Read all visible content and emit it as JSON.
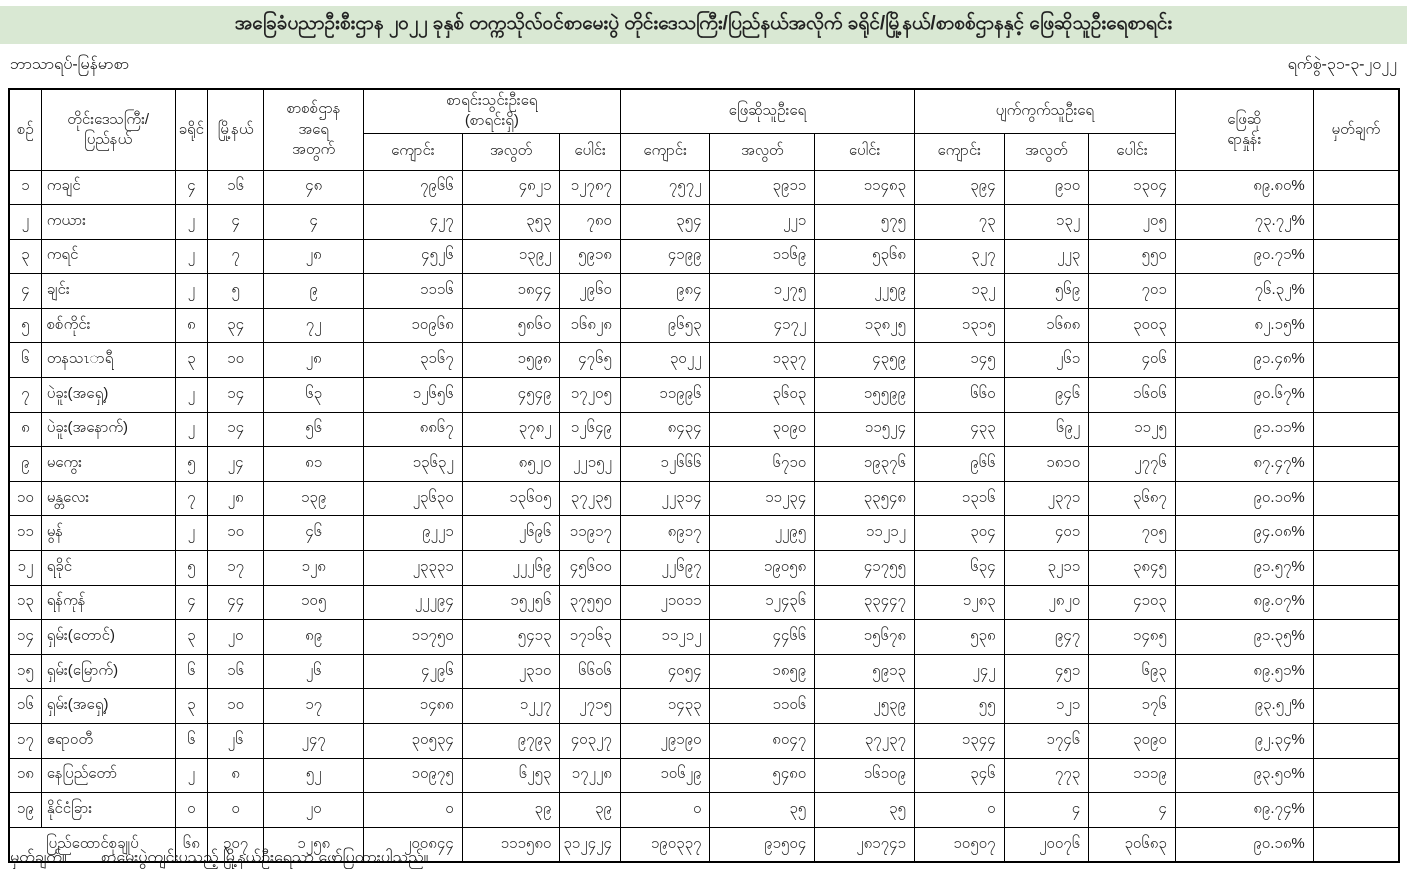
{
  "title": "အခြေခံပညာဦးစီးဌာန ၂၀၂၂ ခုနှစ် တက္ကသိုလ်ဝင်စာမေးပွဲ တိုင်းဒေသကြီး/ပြည်နယ်အလိုက် ခရိုင်/မြို့နယ်/စာစစ်ဌာနနှင့် ဖြေဆိုသူဦးရေစာရင်း",
  "subject_label": "ဘာသာရပ်-မြန်မာစာ",
  "date_label": "ရက်စွဲ-၃၁-၃-၂၀၂၂",
  "header": {
    "seq": "စဉ်",
    "region_line1": "တိုင်းဒေသကြီး/",
    "region_line2": "ပြည်နယ်",
    "district": "ခရိုင်",
    "township": "မြို့နယ်",
    "centers_line1": "စာစစ်ဌာန",
    "centers_line2": "အရေ",
    "centers_line3": "အတွက်",
    "group_registered_line1": "စာရင်းသွင်းဦးရေ",
    "group_registered_line2": "(စာရင်းရှိ)",
    "group_answered": "ဖြေဆိုသူဦးရေ",
    "group_absent": "ပျက်ကွက်သူဦးရေ",
    "sub_school": "ကျောင်း",
    "sub_private": "အလွတ်",
    "sub_total": "ပေါင်း",
    "percent_line1": "ဖြေဆို",
    "percent_line2": "ရာနှုန်း",
    "remark": "မှတ်ချက်"
  },
  "table": {
    "rows": [
      {
        "no": "၁",
        "name": "ကချင်",
        "district": "၄",
        "township": "၁၆",
        "centers": "၄၈",
        "registered": [
          "၇၉၆၆",
          "၄၈၂၁",
          "၁၂၇၈၇"
        ],
        "answered": [
          "၇၅၇၂",
          "၃၉၁၁",
          "၁၁၄၈၃"
        ],
        "absent": [
          "၃၉၄",
          "၉၁၀",
          "၁၃၀၄"
        ],
        "percent": "၈၉.၈၀%",
        "remark": ""
      },
      {
        "no": "၂",
        "name": "ကယား",
        "district": "၂",
        "township": "၄",
        "centers": "၄",
        "registered": [
          "၄၂၇",
          "၃၅၃",
          "၇၈၀"
        ],
        "answered": [
          "၃၅၄",
          "၂၂၁",
          "၅၇၅"
        ],
        "absent": [
          "၇၃",
          "၁၃၂",
          "၂၀၅"
        ],
        "percent": "၇၃.၇၂%",
        "remark": ""
      },
      {
        "no": "၃",
        "name": "ကရင်",
        "district": "၂",
        "township": "၇",
        "centers": "၂၈",
        "registered": [
          "၄၅၂၆",
          "၁၃၉၂",
          "၅၉၁၈"
        ],
        "answered": [
          "၄၁၉၉",
          "၁၁၆၉",
          "၅၃၆၈"
        ],
        "absent": [
          "၃၂၇",
          "၂၂၃",
          "၅၅၀"
        ],
        "percent": "၉၀.၇၁%",
        "remark": ""
      },
      {
        "no": "၄",
        "name": "ချင်း",
        "district": "၂",
        "township": "၅",
        "centers": "၉",
        "registered": [
          "၁၁၁၆",
          "၁၈၄၄",
          "၂၉၆၀"
        ],
        "answered": [
          "၉၈၄",
          "၁၂၇၅",
          "၂၂၅၉"
        ],
        "absent": [
          "၁၃၂",
          "၅၆၉",
          "၇၀၁"
        ],
        "percent": "၇၆.၃၂%",
        "remark": ""
      },
      {
        "no": "၅",
        "name": "စစ်ကိုင်း",
        "district": "၈",
        "township": "၃၄",
        "centers": "၇၂",
        "registered": [
          "၁၀၉၆၈",
          "၅၈၆၀",
          "၁၆၈၂၈"
        ],
        "answered": [
          "၉၆၅၃",
          "၄၁၇၂",
          "၁၃၈၂၅"
        ],
        "absent": [
          "၁၃၁၅",
          "၁၆၈၈",
          "၃၀၀၃"
        ],
        "percent": "၈၂.၁၅%",
        "remark": ""
      },
      {
        "no": "၆",
        "name": "တနသၤာရီ",
        "district": "၃",
        "township": "၁၀",
        "centers": "၂၈",
        "registered": [
          "၃၁၆၇",
          "၁၅၉၈",
          "၄၇၆၅"
        ],
        "answered": [
          "၃၀၂၂",
          "၁၃၃၇",
          "၄၃၅၉"
        ],
        "absent": [
          "၁၄၅",
          "၂၆၁",
          "၄၀၆"
        ],
        "percent": "၉၁.၄၈%",
        "remark": ""
      },
      {
        "no": "၇",
        "name": "ပဲခူး(အရှေ့)",
        "district": "၂",
        "township": "၁၄",
        "centers": "၆၃",
        "registered": [
          "၁၂၆၅၆",
          "၄၅၄၉",
          "၁၇၂၀၅"
        ],
        "answered": [
          "၁၁၉၉၆",
          "၃၆၀၃",
          "၁၅၅၉၉"
        ],
        "absent": [
          "၆၆၀",
          "၉၄၆",
          "၁၆၀၆"
        ],
        "percent": "၉၀.၆၇%",
        "remark": ""
      },
      {
        "no": "၈",
        "name": "ပဲခူး(အနောက်)",
        "district": "၂",
        "township": "၁၄",
        "centers": "၅၆",
        "registered": [
          "၈၈၆၇",
          "၃၇၈၂",
          "၁၂၆၄၉"
        ],
        "answered": [
          "၈၄၃၄",
          "၃၀၉၀",
          "၁၁၅၂၄"
        ],
        "absent": [
          "၄၃၃",
          "၆၉၂",
          "၁၁၂၅"
        ],
        "percent": "၉၁.၁၁%",
        "remark": ""
      },
      {
        "no": "၉",
        "name": "မကွေး",
        "district": "၅",
        "township": "၂၄",
        "centers": "၈၁",
        "registered": [
          "၁၃၆၃၂",
          "၈၅၂၀",
          "၂၂၁၅၂"
        ],
        "answered": [
          "၁၂၆၆၆",
          "၆၇၁၀",
          "၁၉၃၇၆"
        ],
        "absent": [
          "၉၆၆",
          "၁၈၁၀",
          "၂၇၇၆"
        ],
        "percent": "၈၇.၄၇%",
        "remark": ""
      },
      {
        "no": "၁၀",
        "name": "မန္တလေး",
        "district": "၇",
        "township": "၂၈",
        "centers": "၁၃၉",
        "registered": [
          "၂၃၆၃၀",
          "၁၃၆၀၅",
          "၃၇၂၃၅"
        ],
        "answered": [
          "၂၂၃၁၄",
          "၁၁၂၃၄",
          "၃၃၅၄၈"
        ],
        "absent": [
          "၁၃၁၆",
          "၂၃၇၁",
          "၃၆၈၇"
        ],
        "percent": "၉၀.၁၀%",
        "remark": ""
      },
      {
        "no": "၁၁",
        "name": "မွန်",
        "district": "၂",
        "township": "၁၀",
        "centers": "၄၆",
        "registered": [
          "၉၂၂၁",
          "၂၆၉၆",
          "၁၁၉၁၇"
        ],
        "answered": [
          "၈၉၁၇",
          "၂၂၉၅",
          "၁၁၂၁၂"
        ],
        "absent": [
          "၃၀၄",
          "၄၀၁",
          "၇၀၅"
        ],
        "percent": "၉၄.၀၈%",
        "remark": ""
      },
      {
        "no": "၁၂",
        "name": "ရခိုင်",
        "district": "၅",
        "township": "၁၇",
        "centers": "၁၂၈",
        "registered": [
          "၂၃၃၃၁",
          "၂၂၂၆၉",
          "၄၅၆၀၀"
        ],
        "answered": [
          "၂၂၆၉၇",
          "၁၉၀၅၈",
          "၄၁၇၅၅"
        ],
        "absent": [
          "၆၃၄",
          "၃၂၁၁",
          "၃၈၄၅"
        ],
        "percent": "၉၁.၅၇%",
        "remark": ""
      },
      {
        "no": "၁၃",
        "name": "ရန်ကုန်",
        "district": "၄",
        "township": "၄၄",
        "centers": "၁၀၅",
        "registered": [
          "၂၂၂၉၄",
          "၁၅၂၅၆",
          "၃၇၅၅၀"
        ],
        "answered": [
          "၂၁၀၁၁",
          "၁၂၄၃၆",
          "၃၃၄၄၇"
        ],
        "absent": [
          "၁၂၈၃",
          "၂၈၂၀",
          "၄၁၀၃"
        ],
        "percent": "၈၉.၀၇%",
        "remark": ""
      },
      {
        "no": "၁၄",
        "name": "ရှမ်း(တောင်)",
        "district": "၃",
        "township": "၂၀",
        "centers": "၈၉",
        "registered": [
          "၁၁၇၅၀",
          "၅၄၁၃",
          "၁၇၁၆၃"
        ],
        "answered": [
          "၁၁၂၁၂",
          "၄၄၆၆",
          "၁၅၆၇၈"
        ],
        "absent": [
          "၅၃၈",
          "၉၄၇",
          "၁၄၈၅"
        ],
        "percent": "၉၁.၃၅%",
        "remark": ""
      },
      {
        "no": "၁၅",
        "name": "ရှမ်း(မြောက်)",
        "district": "၆",
        "township": "၁၆",
        "centers": "၂၆",
        "registered": [
          "၄၂၉၆",
          "၂၃၁၀",
          "၆၆၀၆"
        ],
        "answered": [
          "၄၀၅၄",
          "၁၈၅၉",
          "၅၉၁၃"
        ],
        "absent": [
          "၂၄၂",
          "၄၅၁",
          "၆၉၃"
        ],
        "percent": "၈၉.၅၁%",
        "remark": ""
      },
      {
        "no": "၁၆",
        "name": "ရှမ်း(အရှေ့)",
        "district": "၃",
        "township": "၁၀",
        "centers": "၁၇",
        "registered": [
          "၁၄၈၈",
          "၁၂၂၇",
          "၂၇၁၅"
        ],
        "answered": [
          "၁၄၃၃",
          "၁၁၀၆",
          "၂၅၃၉"
        ],
        "absent": [
          "၅၅",
          "၁၂၁",
          "၁၇၆"
        ],
        "percent": "၉၃.၅၂%",
        "remark": ""
      },
      {
        "no": "၁၇",
        "name": "ဧရာဝတီ",
        "district": "၆",
        "township": "၂၆",
        "centers": "၂၄၇",
        "registered": [
          "၃၀၅၃၄",
          "၉၇၉၃",
          "၄၀၃၂၇"
        ],
        "answered": [
          "၂၉၁၉၀",
          "၈၀၄၇",
          "၃၇၂၃၇"
        ],
        "absent": [
          "၁၃၄၄",
          "၁၇၄၆",
          "၃၀၉၀"
        ],
        "percent": "၉၂.၃၄%",
        "remark": ""
      },
      {
        "no": "၁၈",
        "name": "နေပြည်တော်",
        "district": "၂",
        "township": "၈",
        "centers": "၅၂",
        "registered": [
          "၁၀၉၇၅",
          "၆၂၅၃",
          "၁၇၂၂၈"
        ],
        "answered": [
          "၁၀၆၂၉",
          "၅၄၈၀",
          "၁၆၁၀၉"
        ],
        "absent": [
          "၃၄၆",
          "၇၇၃",
          "၁၁၁၉"
        ],
        "percent": "၉၃.၅၀%",
        "remark": ""
      },
      {
        "no": "၁၉",
        "name": "နိုင်ငံခြား",
        "district": "၀",
        "township": "၀",
        "centers": "၂၀",
        "registered": [
          "၀",
          "၃၉",
          "၃၉"
        ],
        "answered": [
          "၀",
          "၃၅",
          "၃၅"
        ],
        "absent": [
          "၀",
          "၄",
          "၄"
        ],
        "percent": "၈၉.၇၄%",
        "remark": ""
      }
    ],
    "total_row": {
      "label": "ပြည်ထောင်စုချုပ်",
      "district": "၆၈",
      "township": "၃၀၇",
      "centers": "၁၂၅၈",
      "registered": [
        "၂၀၀၈၄၄",
        "၁၁၁၅၈၀",
        "၃၁၂၄၂၄"
      ],
      "answered": [
        "၁၉၀၃၃၇",
        "၉၁၅၀၄",
        "၂၈၁၇၄၁"
      ],
      "absent": [
        "၁၀၅၀၇",
        "၂၀၀၇၆",
        "၃၀၆၈၃"
      ],
      "percent": "၉၀.၁၈%",
      "remark": ""
    }
  },
  "footer": {
    "label": "မှတ်ချက်။",
    "text": "စာမေးပွဲကျင်းပသည့် မြို့နယ်ဦးရေသာ ဖော်ပြထားပါသည်။"
  },
  "colors": {
    "title_bg": "#d9e8d3",
    "border": "#000000",
    "text": "#1c1c1c"
  }
}
